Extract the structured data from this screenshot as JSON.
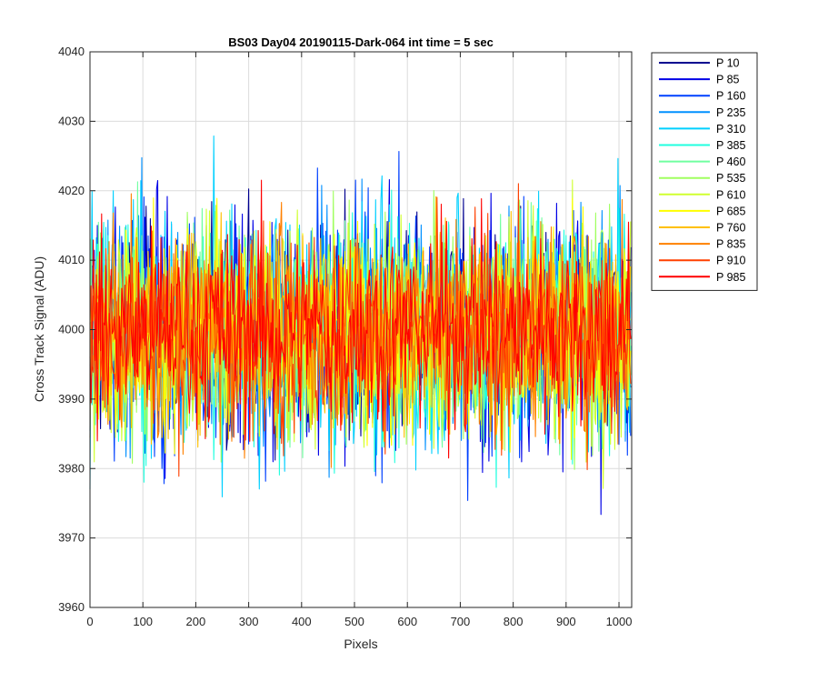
{
  "chart_data": {
    "type": "line",
    "title": "BS03 Day04 20190115-Dark-064 int time = 5 sec",
    "xlabel": "Pixels",
    "ylabel": "Cross Track Signal (ADU)",
    "xlim": [
      0,
      1024
    ],
    "ylim": [
      3960,
      4040
    ],
    "xticks": [
      0,
      100,
      200,
      300,
      400,
      500,
      600,
      700,
      800,
      900,
      1000
    ],
    "yticks": [
      3960,
      3970,
      3980,
      3990,
      4000,
      4010,
      4020,
      4030,
      4040
    ],
    "grid": true,
    "legend_position": "outside-right-top",
    "n_points": 1024,
    "series": [
      {
        "name": "P 10",
        "color": "#00008f",
        "mean": 4000,
        "min": 3972,
        "max": 4027
      },
      {
        "name": "P 85",
        "color": "#0000e6",
        "mean": 4000,
        "min": 3973,
        "max": 4036
      },
      {
        "name": "P 160",
        "color": "#0040ff",
        "mean": 4000,
        "min": 3974,
        "max": 4035
      },
      {
        "name": "P 235",
        "color": "#0090ff",
        "mean": 4000,
        "min": 3967,
        "max": 4028
      },
      {
        "name": "P 310",
        "color": "#00d0ff",
        "mean": 4000,
        "min": 3966,
        "max": 4031
      },
      {
        "name": "P 385",
        "color": "#20ffdf",
        "mean": 4000,
        "min": 3971,
        "max": 4031
      },
      {
        "name": "P 460",
        "color": "#70ffa0",
        "mean": 4000,
        "min": 3972,
        "max": 4030
      },
      {
        "name": "P 535",
        "color": "#a0ff60",
        "mean": 4000,
        "min": 3972,
        "max": 4028
      },
      {
        "name": "P 610",
        "color": "#d0ff30",
        "mean": 4000,
        "min": 3969,
        "max": 4032
      },
      {
        "name": "P 685",
        "color": "#ffff00",
        "mean": 4000,
        "min": 3973,
        "max": 4029
      },
      {
        "name": "P 760",
        "color": "#ffc000",
        "mean": 4000,
        "min": 3974,
        "max": 4027
      },
      {
        "name": "P 835",
        "color": "#ff8000",
        "mean": 4000,
        "min": 3973,
        "max": 4027
      },
      {
        "name": "P 910",
        "color": "#ff4000",
        "mean": 4000,
        "min": 3975,
        "max": 4025
      },
      {
        "name": "P 985",
        "color": "#ff0000",
        "mean": 4000,
        "min": 3969,
        "max": 4022
      }
    ]
  }
}
